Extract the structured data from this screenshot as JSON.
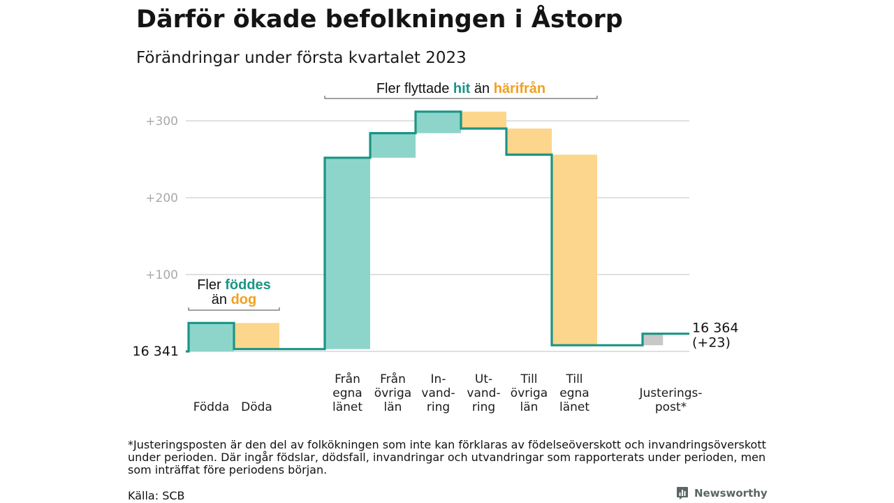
{
  "header": {
    "title": "Därför ökade befolkningen i Åstorp",
    "subtitle": "Förändringar under första kvartalet 2023"
  },
  "chart_data": {
    "type": "waterfall",
    "title": "Därför ökade befolkningen i Åstorp",
    "subtitle": "Förändringar under första kvartalet 2023",
    "start_value": 16341,
    "start_label": "16 341",
    "end_label": [
      "16 364",
      "(+23)"
    ],
    "yticks": [
      {
        "value": 100,
        "label": "+100"
      },
      {
        "value": 200,
        "label": "+200"
      },
      {
        "value": 300,
        "label": "+300"
      }
    ],
    "ylim": [
      0,
      330
    ],
    "steps": [
      {
        "label": [
          "Födda"
        ],
        "value": 37,
        "kind": "inflow"
      },
      {
        "label": [
          "Döda"
        ],
        "value": -34,
        "kind": "outflow"
      },
      {
        "label": [],
        "value": 0,
        "kind": "spacer"
      },
      {
        "label": [
          "Från",
          "egna",
          "länet"
        ],
        "value": 249,
        "kind": "inflow"
      },
      {
        "label": [
          "Från",
          "övriga",
          "län"
        ],
        "value": 32,
        "kind": "inflow"
      },
      {
        "label": [
          "In-",
          "vand-",
          "ring"
        ],
        "value": 28,
        "kind": "inflow"
      },
      {
        "label": [
          "Ut-",
          "vand-",
          "ring"
        ],
        "value": -22,
        "kind": "outflow"
      },
      {
        "label": [
          "Till",
          "övriga",
          "län"
        ],
        "value": -34,
        "kind": "outflow"
      },
      {
        "label": [
          "Till",
          "egna",
          "länet"
        ],
        "value": -248,
        "kind": "outflow"
      },
      {
        "label": [],
        "value": 0,
        "kind": "spacer"
      },
      {
        "label": [
          "Justerings-",
          "post*"
        ],
        "value": 15,
        "kind": "adjustment"
      }
    ],
    "annotations": [
      {
        "id": "births",
        "lines": [
          [
            {
              "text": "Fler ",
              "emph": "none"
            },
            {
              "text": "föddes",
              "emph": "in"
            }
          ],
          [
            {
              "text": "än ",
              "emph": "none"
            },
            {
              "text": "dog",
              "emph": "out"
            }
          ]
        ],
        "span": [
          0,
          1
        ]
      },
      {
        "id": "migration",
        "lines": [
          [
            {
              "text": "Fler flyttade ",
              "emph": "none"
            },
            {
              "text": "hit",
              "emph": "in"
            },
            {
              "text": " än ",
              "emph": "none"
            },
            {
              "text": "härifrån",
              "emph": "out"
            }
          ]
        ],
        "span": [
          3,
          8
        ]
      }
    ],
    "colors": {
      "line": "#1a9585",
      "inflow_fill": "#8dd5cb",
      "outflow_fill": "#fcd68c",
      "adjust_fill": "#c8c8c8",
      "in_text": "#1a9585",
      "out_text": "#f0a020",
      "grid": "#e0e0e0"
    }
  },
  "footer": {
    "footnote": "*Justeringsposten är den del av folkökningen som inte kan förklaras av födelseöverskott och invandringsöverskott under perioden. Där ingår födslar, dödsfall, invandringar och utvandringar som rapporterats under perioden, men som inträffat före periodens början.",
    "source": "Källa: SCB",
    "brand": "Newsworthy",
    "brand_icon": "bar-chart-icon"
  }
}
